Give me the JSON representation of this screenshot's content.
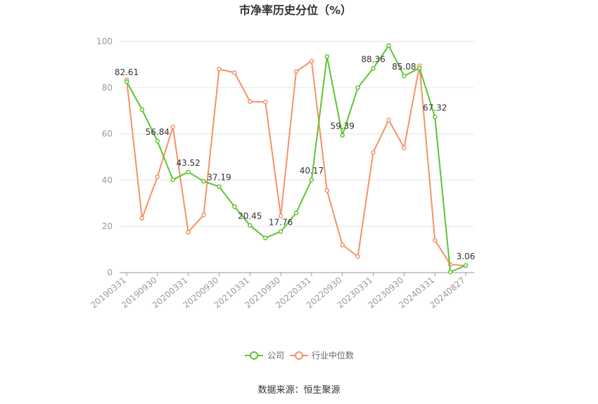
{
  "chart_data": {
    "type": "line",
    "title": "市净率历史分位（%）",
    "ylim": [
      0,
      100
    ],
    "yticks": [
      0,
      20,
      40,
      60,
      80,
      100
    ],
    "x_tick_labels": [
      "20190331",
      "20190930",
      "20200331",
      "20200930",
      "20210331",
      "20210930",
      "20220331",
      "20220930",
      "20230331",
      "20230930",
      "20240331",
      "20240827"
    ],
    "x_tick_indices": [
      0,
      2,
      4,
      6,
      8,
      10,
      12,
      14,
      16,
      18,
      20,
      22
    ],
    "grid": true,
    "legend_position": "bottom",
    "series": [
      {
        "name": "公司",
        "color": "#5cc531",
        "values": [
          82.61,
          70.5,
          56.84,
          40.2,
          43.52,
          39.5,
          37.19,
          28.5,
          20.45,
          15.0,
          17.76,
          25.8,
          40.17,
          93.5,
          59.39,
          80.0,
          88.36,
          98.2,
          85.08,
          88.5,
          67.32,
          0.3,
          3.06
        ],
        "labels": {
          "0": "82.61",
          "2": "56.84",
          "4": "43.52",
          "6": "37.19",
          "8": "20.45",
          "10": "17.76",
          "12": "40.17",
          "14": "59.39",
          "16": "88.36",
          "18": "85.08",
          "20": "67.32",
          "22": "3.06"
        }
      },
      {
        "name": "行业中位数",
        "color": "#f59266",
        "values": [
          83.5,
          23.5,
          41.5,
          63.0,
          17.5,
          25.0,
          88.0,
          86.5,
          74.0,
          73.8,
          24.5,
          87.0,
          91.5,
          35.5,
          12.0,
          7.0,
          52.0,
          66.0,
          54.0,
          89.5,
          14.0,
          3.5,
          3.0
        ]
      }
    ]
  },
  "legend": {
    "company": "公司",
    "industry": "行业中位数"
  },
  "source": "数据来源：恒生聚源"
}
